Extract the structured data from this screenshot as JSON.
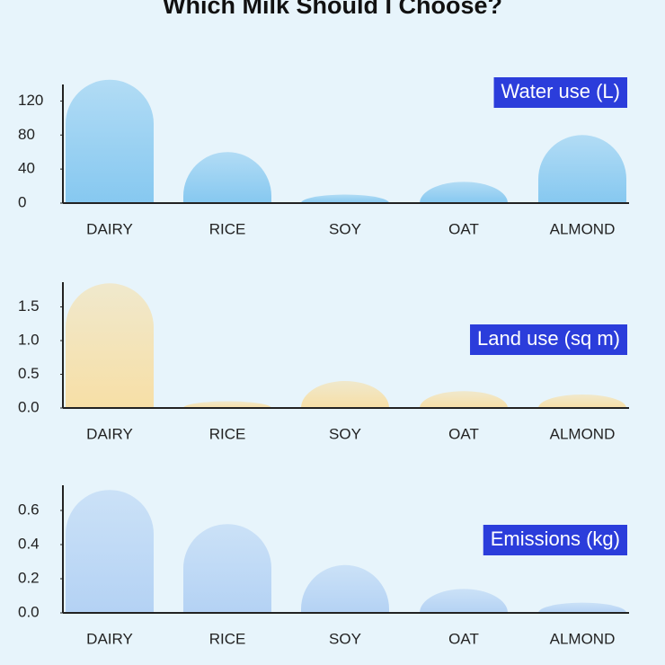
{
  "title": "Which Milk Should I Choose?",
  "chart_data": [
    {
      "type": "bar",
      "title": "Water use (L)",
      "categories": [
        "DAIRY",
        "RICE",
        "SOY",
        "OAT",
        "ALMOND"
      ],
      "values": [
        145,
        60,
        10,
        25,
        80
      ],
      "color": "#86c8f0",
      "ylim": [
        0,
        150
      ],
      "yticks": [
        0,
        40,
        80,
        120
      ]
    },
    {
      "type": "bar",
      "title": "Land use (sq m)",
      "categories": [
        "DAIRY",
        "RICE",
        "SOY",
        "OAT",
        "ALMOND"
      ],
      "values": [
        1.85,
        0.1,
        0.4,
        0.25,
        0.2
      ],
      "color": "#f7dfa6",
      "ylim": [
        0,
        2
      ],
      "yticks": [
        {
          "value": 0,
          "label": "0.0"
        },
        0.5,
        {
          "value": 1,
          "label": "1.0"
        },
        1.5
      ]
    },
    {
      "type": "bar",
      "title": "Emissions (kg)",
      "categories": [
        "DAIRY",
        "RICE",
        "SOY",
        "OAT",
        "ALMOND"
      ],
      "values": [
        0.72,
        0.52,
        0.28,
        0.14,
        0.06
      ],
      "color": "#b4d2f4",
      "ylim": [
        0,
        0.8
      ],
      "yticks": [
        {
          "value": 0,
          "label": "0.0"
        },
        0.2,
        0.4,
        0.6
      ]
    }
  ]
}
